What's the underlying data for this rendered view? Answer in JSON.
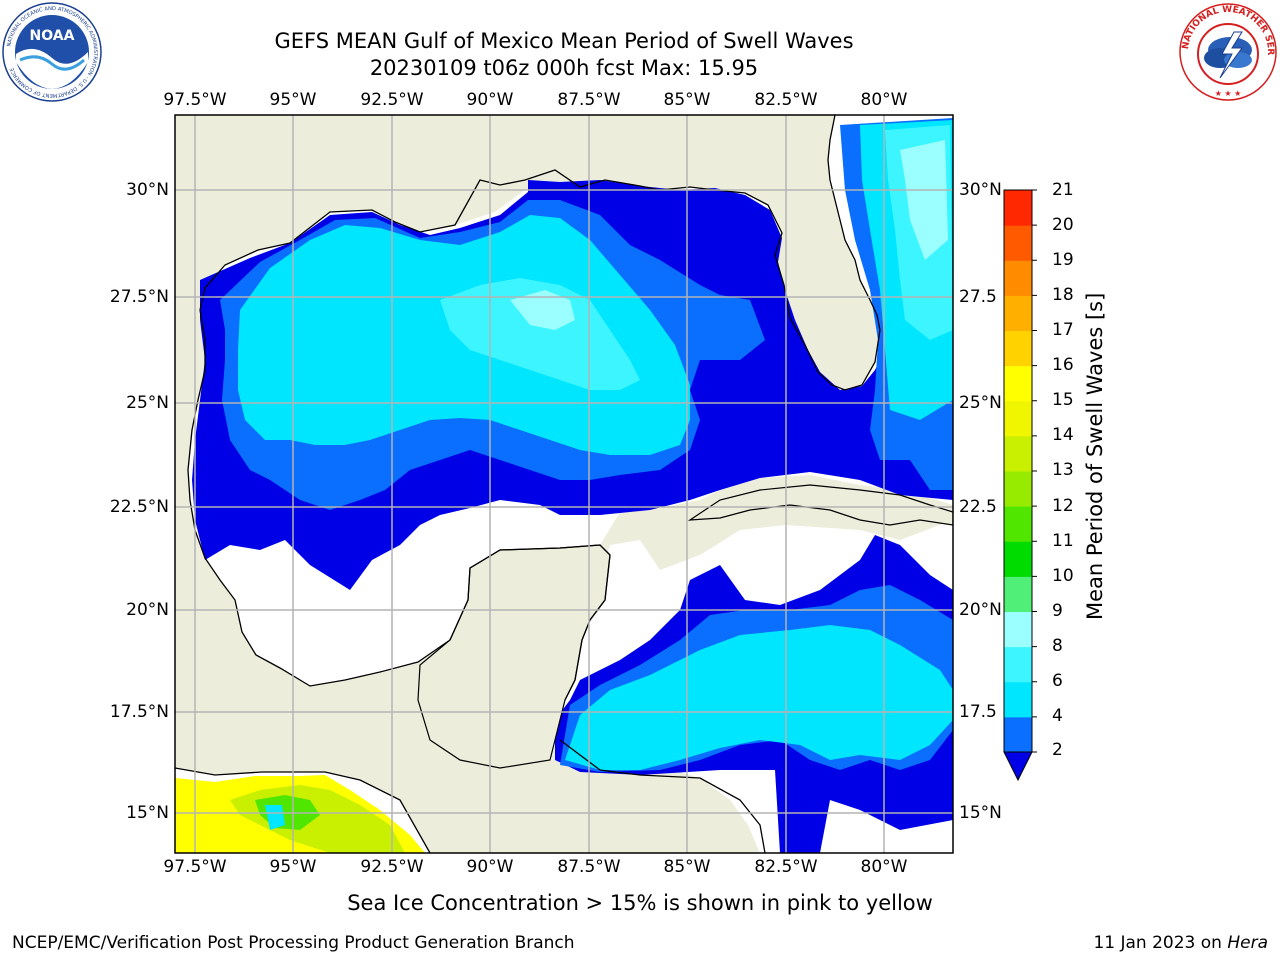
{
  "title": {
    "line1": "GEFS MEAN Gulf of Mexico Mean Period of Swell Waves",
    "line2": "20230109 t06z 000h fcst   Max: 15.95"
  },
  "logos": {
    "noaa_text": "NOAA",
    "noaa_ring": "NATIONAL OCEANIC AND ATMOSPHERIC ADMINISTRATION · U.S. DEPARTMENT OF COMMERCE",
    "nws_ring": "NATIONAL WEATHER SERVICE"
  },
  "map": {
    "lon_ticks": [
      "97.5°W",
      "95°W",
      "92.5°W",
      "90°W",
      "87.5°W",
      "85°W",
      "82.5°W",
      "80°W"
    ],
    "lat_ticks_left": [
      "30°N",
      "27.5°N",
      "25°N",
      "22.5°N",
      "20°N",
      "17.5°N",
      "15°N"
    ],
    "lat_ticks_right": [
      "30°N",
      "27.5",
      "25°N",
      "22.5",
      "20°N",
      "17.5",
      "15°N"
    ],
    "lon_values": [
      -97.5,
      -95,
      -92.5,
      -90,
      -87.5,
      -85,
      -82.5,
      -80
    ],
    "lat_values": [
      30,
      27.5,
      25,
      22.5,
      20,
      17.5,
      15
    ],
    "extent": {
      "lon_min": -98,
      "lon_max": -79,
      "lat_min": 14,
      "lat_max": 31.8
    },
    "colors": {
      "land": "#ededdc",
      "ocean_nodata": "#ffffff",
      "grid": "#b4b4b4",
      "coast": "#000000"
    }
  },
  "colorbar": {
    "label": "Mean Period of Swell Waves [s]",
    "ticks": [
      "2",
      "4",
      "6",
      "8",
      "9",
      "10",
      "11",
      "12",
      "13",
      "14",
      "15",
      "16",
      "17",
      "18",
      "19",
      "20",
      "21"
    ],
    "tick_values": [
      2,
      4,
      6,
      8,
      9,
      10,
      11,
      12,
      13,
      14,
      15,
      16,
      17,
      18,
      19,
      20,
      21
    ],
    "colors": [
      "#0000e6",
      "#0a6eff",
      "#00e6ff",
      "#3cf5ff",
      "#9bffff",
      "#50f078",
      "#00dc00",
      "#50e600",
      "#96eb00",
      "#c8f000",
      "#f0f500",
      "#ffff00",
      "#ffd200",
      "#ffaf00",
      "#ff8c00",
      "#ff5a00",
      "#ff2800",
      "#ff0000"
    ],
    "extend": "min"
  },
  "note": "Sea Ice Concentration > 15% is shown in pink to yellow",
  "footer": {
    "left": "NCEP/EMC/Verification Post Processing Product Generation Branch",
    "right_date": "11 Jan 2023 on ",
    "right_host": "Hera"
  }
}
